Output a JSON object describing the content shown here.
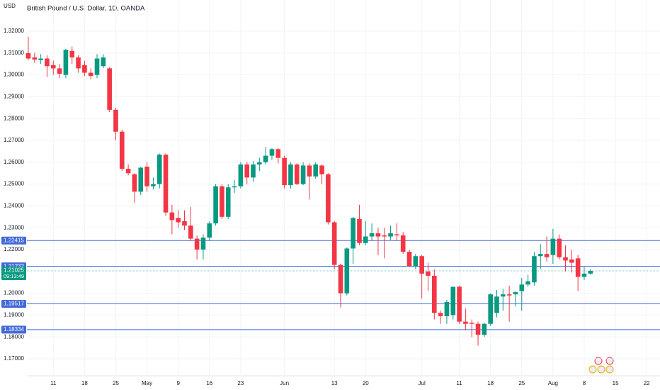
{
  "chart_data": {
    "type": "candlestick",
    "title": "British Pound / U.S. Dollar, 1D, OANDA",
    "currency": "USD",
    "up_color": "#089981",
    "down_color": "#f23645",
    "grid": true,
    "ylim": [
      1.1622,
      1.3343
    ],
    "yticks": [
      {
        "value": 1.17,
        "label": "1.17000"
      },
      {
        "value": 1.18,
        "label": "1.18000"
      },
      {
        "value": 1.19,
        "label": "1.19000"
      },
      {
        "value": 1.2,
        "label": "1.20000"
      },
      {
        "value": 1.22,
        "label": "1.22000"
      },
      {
        "value": 1.23,
        "label": "1.23000"
      },
      {
        "value": 1.24,
        "label": "1.24000"
      },
      {
        "value": 1.25,
        "label": "1.25000"
      },
      {
        "value": 1.26,
        "label": "1.26000"
      },
      {
        "value": 1.27,
        "label": "1.27000"
      },
      {
        "value": 1.28,
        "label": "1.28000"
      },
      {
        "value": 1.29,
        "label": "1.29000"
      },
      {
        "value": 1.3,
        "label": "1.30000"
      },
      {
        "value": 1.31,
        "label": "1.31000"
      },
      {
        "value": 1.32,
        "label": "1.32000"
      }
    ],
    "categories": [
      null,
      null,
      null,
      null,
      "11",
      null,
      null,
      null,
      null,
      "18",
      null,
      null,
      null,
      null,
      "25",
      null,
      null,
      null,
      null,
      "May",
      null,
      null,
      null,
      null,
      "9",
      null,
      null,
      null,
      null,
      "16",
      null,
      null,
      null,
      null,
      "23",
      null,
      null,
      null,
      null,
      null,
      null,
      "Jun",
      null,
      null,
      null,
      null,
      null,
      null,
      null,
      "13",
      null,
      null,
      null,
      null,
      "20",
      null,
      null,
      null,
      null,
      null,
      null,
      null,
      null,
      "Jul",
      null,
      null,
      null,
      null,
      null,
      "11",
      null,
      null,
      null,
      null,
      "18",
      null,
      null,
      null,
      null,
      "25",
      null,
      null,
      null,
      null,
      "Aug",
      null,
      null,
      null,
      null,
      "8",
      null,
      null,
      null,
      null,
      "15",
      null,
      null,
      null,
      null,
      "22"
    ],
    "candles": {
      "open": [
        1.31,
        1.308,
        1.3068,
        1.3075,
        1.3045,
        1.303,
        1.3,
        1.311,
        1.308,
        1.3045,
        1.301,
        1.3,
        1.304,
        1.303,
        1.284,
        1.274,
        1.257,
        1.2545,
        1.2465,
        1.258,
        1.249,
        1.25,
        1.2635,
        1.237,
        1.2345,
        1.233,
        1.231,
        1.225,
        1.22,
        1.2255,
        1.232,
        1.249,
        1.235,
        1.2485,
        1.249,
        1.259,
        1.253,
        1.259,
        1.26,
        1.263,
        1.266,
        1.262,
        1.2495,
        1.259,
        1.25,
        1.2585,
        1.2535,
        1.2585,
        1.2545,
        1.2325,
        1.213,
        1.2,
        1.2205,
        1.234,
        1.223,
        1.226,
        1.2275,
        1.2265,
        1.226,
        1.227,
        1.2265,
        1.219,
        1.2125,
        1.217,
        1.21,
        1.208,
        1.191,
        1.1895,
        1.19,
        1.203,
        1.187,
        1.1865,
        1.186,
        1.181,
        1.186,
        1.191,
        1.1985,
        1.1995,
        1.1995,
        1.201,
        1.204,
        1.205,
        1.217,
        1.218,
        1.2175,
        1.225,
        1.2165,
        1.2155,
        1.216,
        1.2075,
        1.209,
        null,
        null,
        null,
        null,
        null,
        null,
        null,
        null,
        null
      ],
      "high": [
        1.3174,
        1.31,
        1.3095,
        1.309,
        1.3065,
        1.305,
        1.312,
        1.313,
        1.309,
        1.3065,
        1.303,
        1.3095,
        1.3095,
        1.3035,
        1.285,
        1.275,
        1.259,
        1.255,
        1.258,
        1.26,
        1.253,
        1.264,
        1.264,
        1.2405,
        1.238,
        1.238,
        1.2395,
        1.2265,
        1.227,
        1.233,
        1.25,
        1.25,
        1.25,
        1.252,
        1.26,
        1.26,
        1.2605,
        1.262,
        1.267,
        1.2665,
        1.2665,
        1.263,
        1.26,
        1.2595,
        1.26,
        1.2595,
        1.26,
        1.259,
        1.255,
        1.233,
        1.2135,
        1.221,
        1.235,
        1.2405,
        1.233,
        1.232,
        1.23,
        1.23,
        1.231,
        1.232,
        1.228,
        1.22,
        1.218,
        1.2175,
        1.214,
        1.211,
        1.192,
        1.197,
        1.203,
        1.2035,
        1.193,
        1.188,
        1.187,
        1.1865,
        1.2,
        1.2015,
        1.202,
        1.2035,
        1.201,
        1.207,
        1.2085,
        1.219,
        1.2225,
        1.226,
        1.2295,
        1.227,
        1.222,
        1.22,
        1.2175,
        1.212,
        1.211,
        null,
        null,
        null,
        null,
        null,
        null,
        null,
        null,
        null
      ],
      "low": [
        1.3068,
        1.3055,
        1.305,
        1.299,
        1.3,
        1.2985,
        1.2985,
        1.305,
        1.301,
        1.2995,
        1.298,
        1.2985,
        1.303,
        1.283,
        1.27,
        1.256,
        1.254,
        1.2415,
        1.245,
        1.2465,
        1.2475,
        1.248,
        1.2355,
        1.227,
        1.23,
        1.229,
        1.224,
        1.2155,
        1.2155,
        1.224,
        1.231,
        1.234,
        1.234,
        1.246,
        1.248,
        1.25,
        1.251,
        1.256,
        1.259,
        1.261,
        1.2595,
        1.248,
        1.248,
        1.2495,
        1.2495,
        1.243,
        1.2525,
        1.25,
        1.2315,
        1.211,
        1.1935,
        1.199,
        1.2135,
        1.222,
        1.222,
        1.224,
        1.2175,
        1.216,
        1.2245,
        1.224,
        1.218,
        1.212,
        1.211,
        1.1975,
        1.201,
        1.188,
        1.186,
        1.186,
        1.188,
        1.186,
        1.183,
        1.18,
        1.176,
        1.18,
        1.185,
        1.189,
        1.192,
        1.187,
        1.194,
        1.192,
        1.203,
        1.2035,
        1.211,
        1.2145,
        1.2135,
        1.2155,
        1.21,
        1.2095,
        1.201,
        1.206,
        1.2085,
        null,
        null,
        null,
        null,
        null,
        null,
        null,
        null,
        null
      ],
      "close": [
        1.3075,
        1.307,
        1.3075,
        1.304,
        1.303,
        1.3005,
        1.3115,
        1.308,
        1.303,
        1.301,
        1.2995,
        1.3075,
        1.308,
        1.284,
        1.274,
        1.257,
        1.255,
        1.2465,
        1.2575,
        1.249,
        1.25,
        1.2635,
        1.237,
        1.2335,
        1.2325,
        1.231,
        1.225,
        1.22,
        1.2255,
        1.232,
        1.249,
        1.235,
        1.2485,
        1.249,
        1.259,
        1.253,
        1.259,
        1.26,
        1.263,
        1.266,
        1.262,
        1.2495,
        1.259,
        1.25,
        1.2585,
        1.2535,
        1.259,
        1.2545,
        1.2325,
        1.213,
        1.2,
        1.2205,
        1.2345,
        1.223,
        1.226,
        1.2275,
        1.226,
        1.226,
        1.2275,
        1.2265,
        1.219,
        1.2125,
        1.217,
        1.209,
        1.208,
        1.191,
        1.1895,
        1.196,
        1.203,
        1.187,
        1.186,
        1.186,
        1.181,
        1.186,
        1.1995,
        1.1985,
        1.1995,
        1.199,
        1.2005,
        1.204,
        1.2055,
        1.217,
        1.218,
        1.2165,
        1.225,
        1.2165,
        1.215,
        1.214,
        1.2075,
        1.209,
        1.21025,
        null,
        null,
        null,
        null,
        null,
        null,
        null,
        null,
        null
      ]
    },
    "levels": [
      {
        "value": 1.22415,
        "label": "1.22415",
        "color": "#4169d8"
      },
      {
        "value": 1.21232,
        "label": "1.21232",
        "color": "#4169d8"
      },
      {
        "value": 1.19517,
        "label": "1.19517",
        "color": "#4169d8"
      },
      {
        "value": 1.18334,
        "label": "1.18334",
        "color": "#4169d8"
      }
    ],
    "last_price": {
      "value": 1.21025,
      "label": "1.21025",
      "countdown": "09:13:49",
      "color": "#089981"
    }
  }
}
